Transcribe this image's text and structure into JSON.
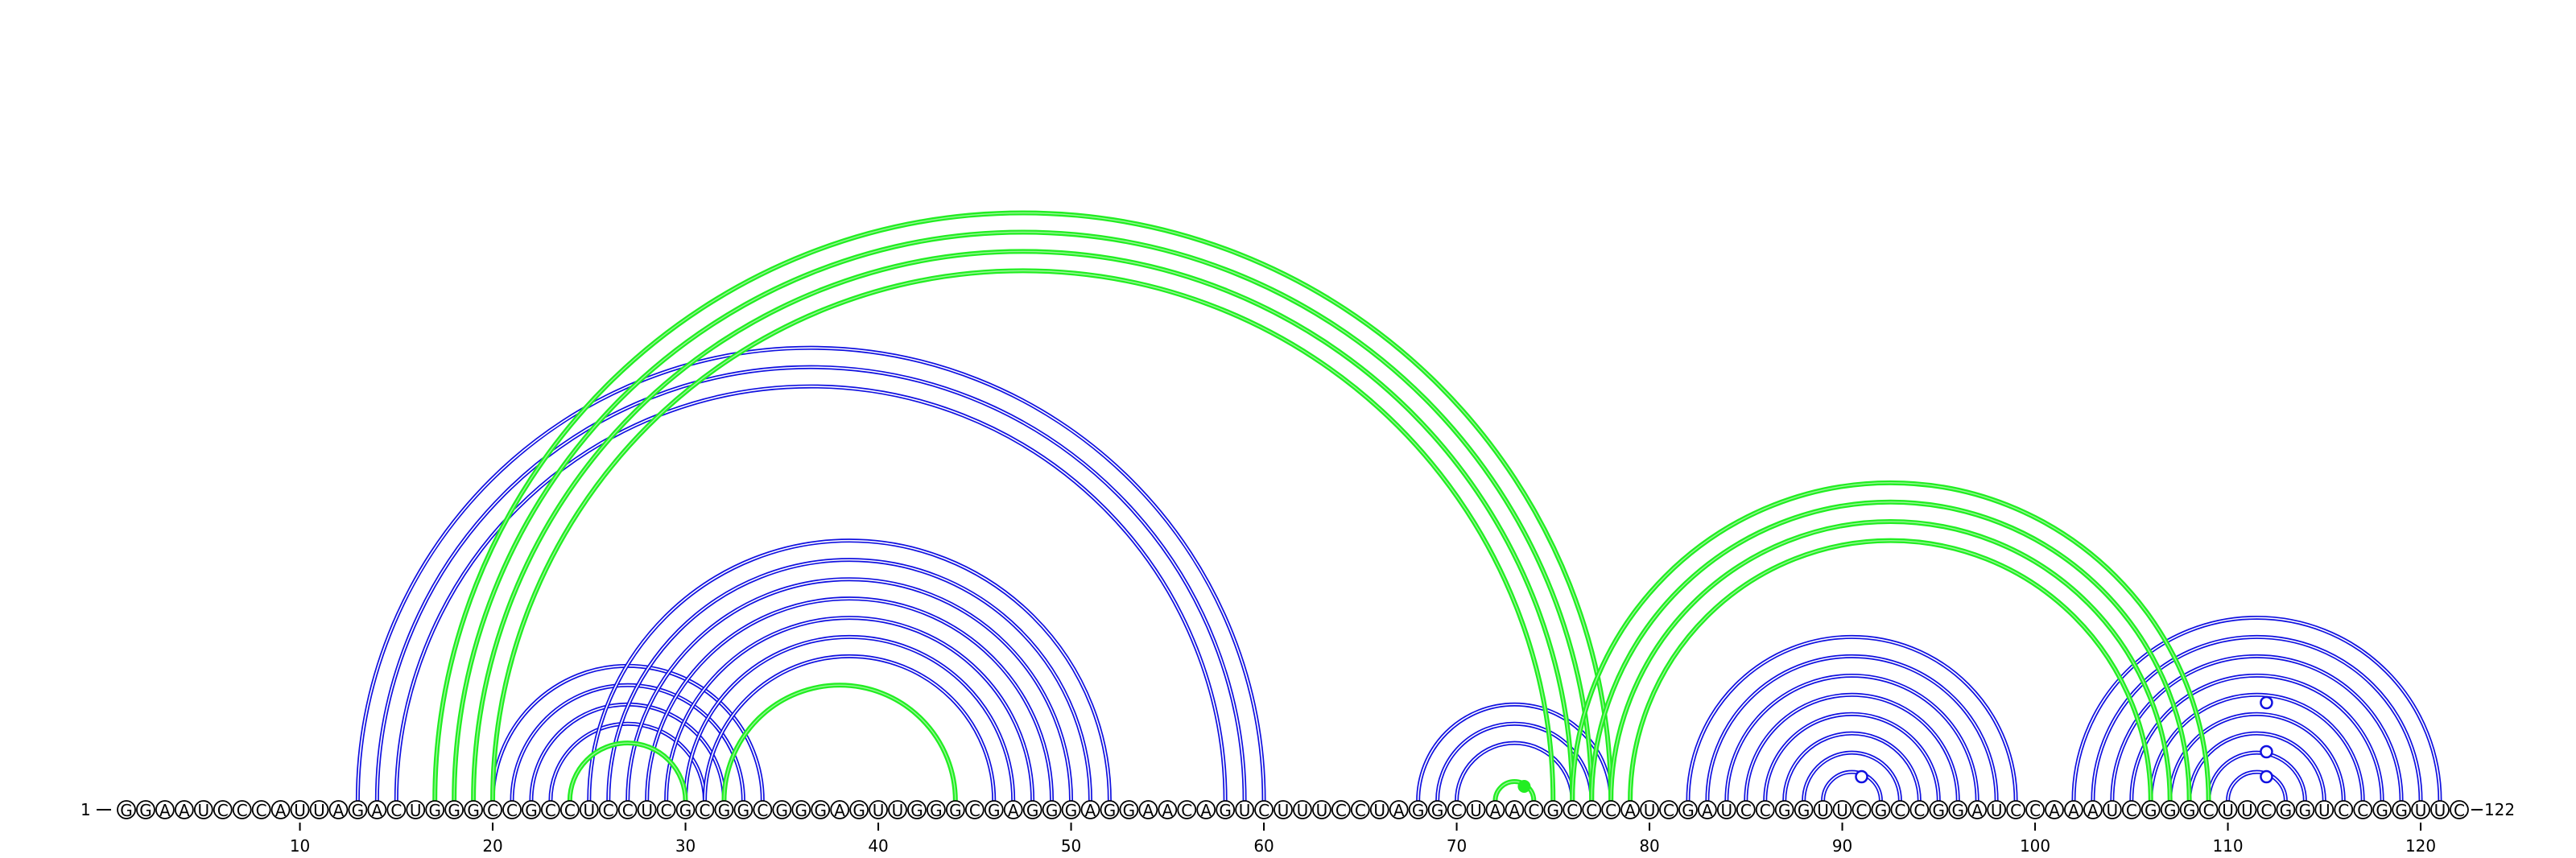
{
  "sequence": "GGAAUCCCAUUAGACUGGGCCGCCUCCUCGCGGCGGGAGUUGGGCGAGGGAGGAACAGUCUUUCCUAGGCUAACGCCCAUCGAUCCGGUUCGCCGGAUCCAAAUCGGGCUUCGGUCCGGUUC",
  "start_label": "1",
  "end_label": "122",
  "tick_labels": [
    "10",
    "20",
    "30",
    "40",
    "50",
    "60",
    "70",
    "80",
    "90",
    "100",
    "110",
    "120"
  ],
  "tick_positions": [
    10,
    20,
    30,
    40,
    50,
    60,
    70,
    80,
    90,
    100,
    110,
    120
  ],
  "colors": {
    "blue": "#1010e0",
    "green": "#22ee22"
  },
  "blue_pairs": [
    [
      13,
      60
    ],
    [
      14,
      59
    ],
    [
      15,
      58
    ],
    [
      20,
      34
    ],
    [
      21,
      33
    ],
    [
      22,
      32
    ],
    [
      23,
      31
    ],
    [
      24,
      30
    ],
    [
      25,
      52
    ],
    [
      26,
      51
    ],
    [
      27,
      50
    ],
    [
      28,
      49
    ],
    [
      29,
      48
    ],
    [
      30,
      47
    ],
    [
      31,
      46
    ],
    [
      68,
      78
    ],
    [
      69,
      77
    ],
    [
      70,
      76
    ],
    [
      82,
      99
    ],
    [
      83,
      98
    ],
    [
      84,
      97
    ],
    [
      85,
      96
    ],
    [
      86,
      95
    ],
    [
      87,
      94
    ],
    [
      88,
      93
    ],
    [
      89,
      92
    ],
    [
      102,
      121
    ],
    [
      103,
      120
    ],
    [
      104,
      119
    ],
    [
      105,
      118
    ],
    [
      106,
      117
    ],
    [
      107,
      116
    ],
    [
      108,
      115
    ],
    [
      109,
      114
    ],
    [
      110,
      113
    ]
  ],
  "green_pairs": [
    [
      17,
      78
    ],
    [
      18,
      77
    ],
    [
      19,
      76
    ],
    [
      20,
      75
    ],
    [
      76,
      109
    ],
    [
      77,
      108
    ],
    [
      78,
      107
    ],
    [
      79,
      106
    ],
    [
      24,
      30
    ],
    [
      32,
      44
    ],
    [
      72,
      74
    ]
  ],
  "blue_markers": [
    91,
    112,
    112,
    112
  ],
  "green_markers": [
    73
  ]
}
